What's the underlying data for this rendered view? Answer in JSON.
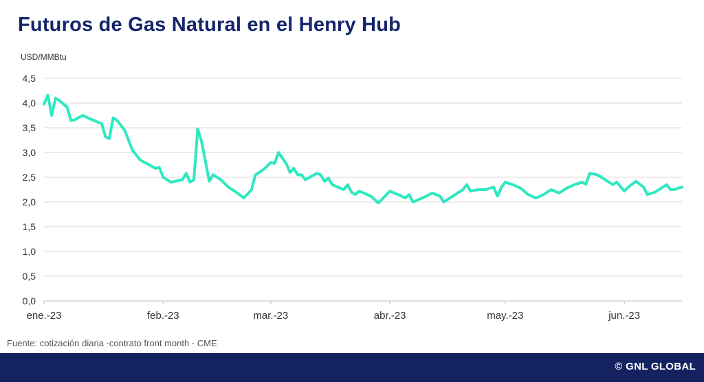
{
  "header": {
    "title": "Futuros de Gas Natural en el Henry Hub"
  },
  "footer": {
    "source": "Fuente: cotización diaria -contrato front month - CME",
    "brand": "© GNL GLOBAL",
    "bar_color": "#14235f"
  },
  "colors": {
    "title": "#14256b",
    "line": "#2ee8c0",
    "grid": "#d9d9d9"
  },
  "chart_data": {
    "type": "line",
    "title": "Futuros de Gas Natural en el Henry Hub",
    "ylabel": "USD/MMBtu",
    "xlabel": "",
    "ylim": [
      0,
      4.5
    ],
    "grid": true,
    "yticks": [
      {
        "value": 0.0,
        "label": "0,0"
      },
      {
        "value": 0.5,
        "label": "0,5"
      },
      {
        "value": 1.0,
        "label": "1,0"
      },
      {
        "value": 1.5,
        "label": "1,5"
      },
      {
        "value": 2.0,
        "label": "2,0"
      },
      {
        "value": 2.5,
        "label": "2,5"
      },
      {
        "value": 3.0,
        "label": "3,0"
      },
      {
        "value": 3.5,
        "label": "3,5"
      },
      {
        "value": 4.0,
        "label": "4,0"
      },
      {
        "value": 4.5,
        "label": "4,5"
      }
    ],
    "xlim": [
      "2023-01-01",
      "2023-06-16"
    ],
    "xticks": [
      {
        "date": "2023-01-01",
        "label": "ene.-23"
      },
      {
        "date": "2023-02-01",
        "label": "feb.-23"
      },
      {
        "date": "2023-03-01",
        "label": "mar.-23"
      },
      {
        "date": "2023-04-01",
        "label": "abr.-23"
      },
      {
        "date": "2023-05-01",
        "label": "may.-23"
      },
      {
        "date": "2023-06-01",
        "label": "jun.-23"
      }
    ],
    "series": [
      {
        "name": "",
        "points": [
          [
            "2023-01-01",
            3.98
          ],
          [
            "2023-01-02",
            4.16
          ],
          [
            "2023-01-03",
            3.75
          ],
          [
            "2023-01-04",
            4.1
          ],
          [
            "2023-01-05",
            4.05
          ],
          [
            "2023-01-07",
            3.92
          ],
          [
            "2023-01-08",
            3.65
          ],
          [
            "2023-01-09",
            3.66
          ],
          [
            "2023-01-11",
            3.75
          ],
          [
            "2023-01-13",
            3.68
          ],
          [
            "2023-01-16",
            3.58
          ],
          [
            "2023-01-17",
            3.32
          ],
          [
            "2023-01-18",
            3.28
          ],
          [
            "2023-01-19",
            3.7
          ],
          [
            "2023-01-20",
            3.65
          ],
          [
            "2023-01-22",
            3.45
          ],
          [
            "2023-01-24",
            3.05
          ],
          [
            "2023-01-26",
            2.85
          ],
          [
            "2023-01-30",
            2.68
          ],
          [
            "2023-01-31",
            2.7
          ],
          [
            "2023-02-01",
            2.5
          ],
          [
            "2023-02-02",
            2.45
          ],
          [
            "2023-02-03",
            2.4
          ],
          [
            "2023-02-06",
            2.45
          ],
          [
            "2023-02-07",
            2.58
          ],
          [
            "2023-02-08",
            2.4
          ],
          [
            "2023-02-09",
            2.45
          ],
          [
            "2023-02-10",
            3.48
          ],
          [
            "2023-02-11",
            3.22
          ],
          [
            "2023-02-13",
            2.42
          ],
          [
            "2023-02-14",
            2.55
          ],
          [
            "2023-02-16",
            2.45
          ],
          [
            "2023-02-18",
            2.3
          ],
          [
            "2023-02-20",
            2.2
          ],
          [
            "2023-02-22",
            2.08
          ],
          [
            "2023-02-24",
            2.25
          ],
          [
            "2023-02-25",
            2.55
          ],
          [
            "2023-02-27",
            2.65
          ],
          [
            "2023-02-28",
            2.72
          ],
          [
            "2023-03-01",
            2.8
          ],
          [
            "2023-03-02",
            2.78
          ],
          [
            "2023-03-03",
            3.0
          ],
          [
            "2023-03-05",
            2.78
          ],
          [
            "2023-03-06",
            2.6
          ],
          [
            "2023-03-07",
            2.68
          ],
          [
            "2023-03-08",
            2.55
          ],
          [
            "2023-03-09",
            2.55
          ],
          [
            "2023-03-10",
            2.45
          ],
          [
            "2023-03-13",
            2.58
          ],
          [
            "2023-03-14",
            2.55
          ],
          [
            "2023-03-15",
            2.42
          ],
          [
            "2023-03-16",
            2.48
          ],
          [
            "2023-03-17",
            2.35
          ],
          [
            "2023-03-20",
            2.25
          ],
          [
            "2023-03-21",
            2.35
          ],
          [
            "2023-03-22",
            2.2
          ],
          [
            "2023-03-23",
            2.15
          ],
          [
            "2023-03-24",
            2.22
          ],
          [
            "2023-03-27",
            2.12
          ],
          [
            "2023-03-29",
            1.98
          ],
          [
            "2023-04-01",
            2.22
          ],
          [
            "2023-04-04",
            2.12
          ],
          [
            "2023-04-05",
            2.08
          ],
          [
            "2023-04-06",
            2.15
          ],
          [
            "2023-04-07",
            2.0
          ],
          [
            "2023-04-10",
            2.1
          ],
          [
            "2023-04-12",
            2.18
          ],
          [
            "2023-04-14",
            2.12
          ],
          [
            "2023-04-15",
            2.0
          ],
          [
            "2023-04-17",
            2.1
          ],
          [
            "2023-04-20",
            2.25
          ],
          [
            "2023-04-21",
            2.35
          ],
          [
            "2023-04-22",
            2.22
          ],
          [
            "2023-04-24",
            2.25
          ],
          [
            "2023-04-26",
            2.25
          ],
          [
            "2023-04-27",
            2.28
          ],
          [
            "2023-04-28",
            2.3
          ],
          [
            "2023-04-29",
            2.12
          ],
          [
            "2023-04-30",
            2.3
          ],
          [
            "2023-05-01",
            2.4
          ],
          [
            "2023-05-03",
            2.35
          ],
          [
            "2023-05-05",
            2.28
          ],
          [
            "2023-05-07",
            2.15
          ],
          [
            "2023-05-09",
            2.08
          ],
          [
            "2023-05-11",
            2.15
          ],
          [
            "2023-05-13",
            2.25
          ],
          [
            "2023-05-15",
            2.18
          ],
          [
            "2023-05-17",
            2.28
          ],
          [
            "2023-05-19",
            2.35
          ],
          [
            "2023-05-21",
            2.4
          ],
          [
            "2023-05-22",
            2.36
          ],
          [
            "2023-05-23",
            2.58
          ],
          [
            "2023-05-25",
            2.55
          ],
          [
            "2023-05-27",
            2.45
          ],
          [
            "2023-05-29",
            2.35
          ],
          [
            "2023-05-30",
            2.4
          ],
          [
            "2023-06-01",
            2.22
          ],
          [
            "2023-06-02",
            2.3
          ],
          [
            "2023-06-04",
            2.42
          ],
          [
            "2023-06-06",
            2.3
          ],
          [
            "2023-06-07",
            2.15
          ],
          [
            "2023-06-09",
            2.2
          ],
          [
            "2023-06-11",
            2.3
          ],
          [
            "2023-06-12",
            2.35
          ],
          [
            "2023-06-13",
            2.25
          ],
          [
            "2023-06-14",
            2.25
          ],
          [
            "2023-06-15",
            2.28
          ],
          [
            "2023-06-16",
            2.3
          ]
        ]
      }
    ]
  }
}
